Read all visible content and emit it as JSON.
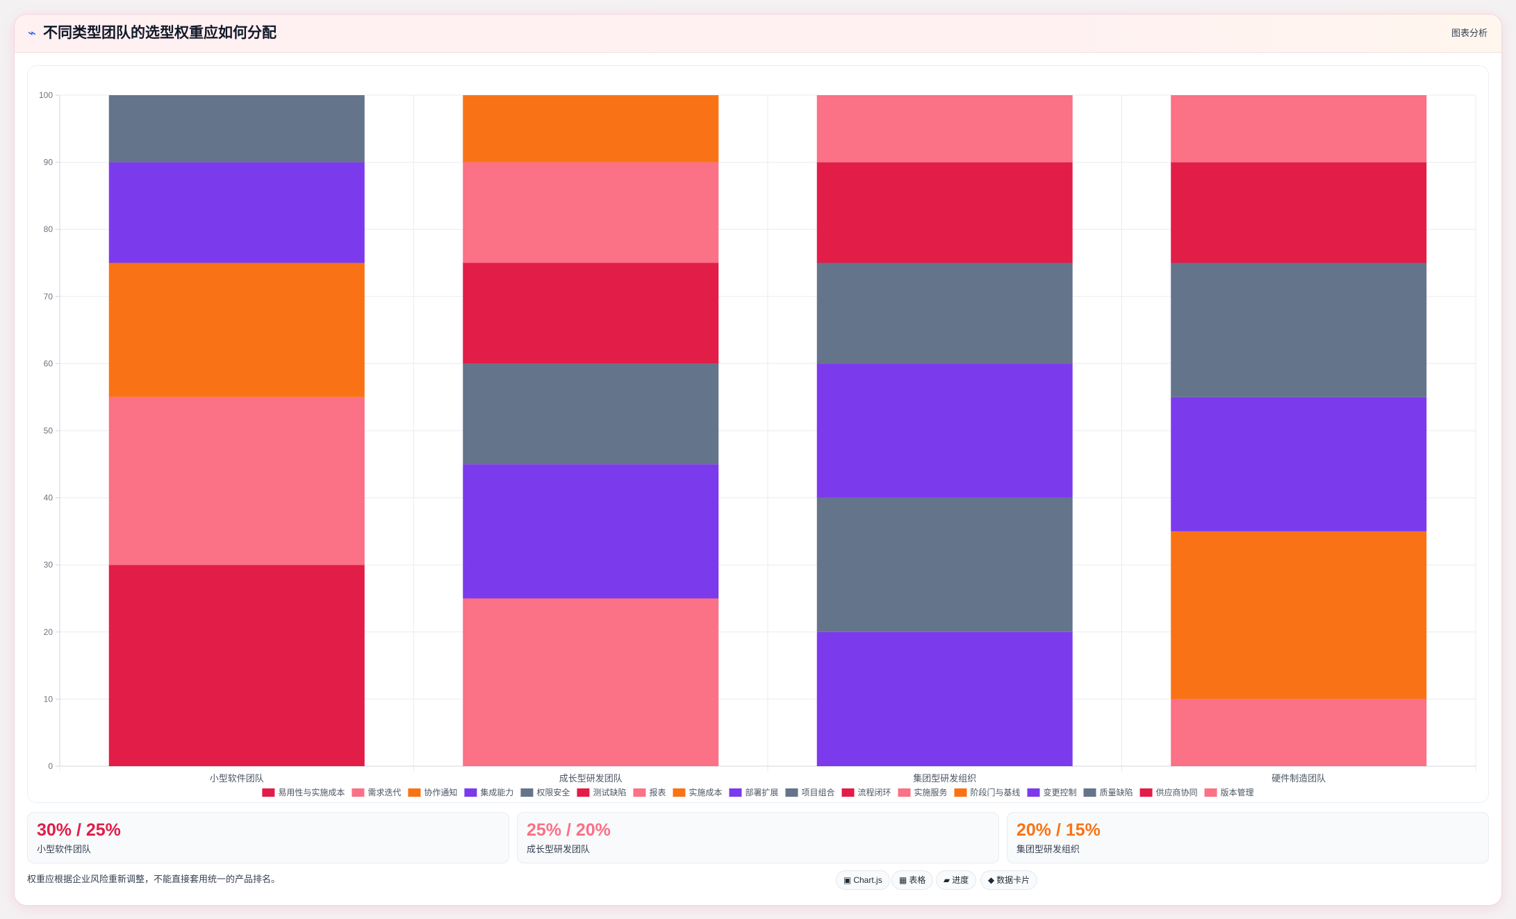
{
  "header": {
    "icon": "activity-bolt-icon",
    "title": "不同类型团队的选型权重应如何分配",
    "tag": "图表分析"
  },
  "chart_data": {
    "type": "bar",
    "stacked": true,
    "categories": [
      "小型软件团队",
      "成长型研发团队",
      "集团型研发组织",
      "硬件制造团队"
    ],
    "ylim": [
      0,
      100
    ],
    "yticks": [
      0,
      10,
      20,
      30,
      40,
      50,
      60,
      70,
      80,
      90,
      100
    ],
    "grid": true,
    "legend_position": "bottom",
    "series": [
      {
        "name": "易用性与实施成本",
        "color": "#e11d48",
        "values": [
          30,
          0,
          0,
          0
        ]
      },
      {
        "name": "需求迭代",
        "color": "#fb7185",
        "values": [
          25,
          0,
          0,
          0
        ]
      },
      {
        "name": "协作通知",
        "color": "#f97316",
        "values": [
          20,
          0,
          0,
          0
        ]
      },
      {
        "name": "集成能力",
        "color": "#7c3aed",
        "values": [
          15,
          0,
          0,
          0
        ]
      },
      {
        "name": "权限安全",
        "color": "#64748b",
        "values": [
          10,
          0,
          0,
          0
        ]
      },
      {
        "name": "测试缺陷",
        "color": "#e11d48",
        "values": [
          0,
          0,
          0,
          0
        ]
      },
      {
        "name": "报表",
        "color": "#fb7185",
        "values": [
          0,
          25,
          0,
          0
        ]
      },
      {
        "name": "实施成本",
        "color": "#f97316",
        "values": [
          0,
          0,
          0,
          0
        ]
      },
      {
        "name": "部署扩展",
        "color": "#7c3aed",
        "values": [
          0,
          20,
          20,
          0
        ]
      },
      {
        "name": "项目组合",
        "color": "#64748b",
        "values": [
          0,
          15,
          20,
          0
        ]
      },
      {
        "name": "流程闭环",
        "color": "#e11d48",
        "values": [
          0,
          15,
          0,
          0
        ]
      },
      {
        "name": "实施服务",
        "color": "#fb7185",
        "values": [
          0,
          15,
          0,
          10
        ]
      },
      {
        "name": "阶段门与基线",
        "color": "#f97316",
        "values": [
          0,
          10,
          0,
          25
        ]
      },
      {
        "name": "变更控制",
        "color": "#7c3aed",
        "values": [
          0,
          0,
          20,
          20
        ]
      },
      {
        "name": "质量缺陷",
        "color": "#64748b",
        "values": [
          0,
          0,
          15,
          20
        ]
      },
      {
        "name": "供应商协同",
        "color": "#e11d48",
        "values": [
          0,
          0,
          15,
          15
        ]
      },
      {
        "name": "版本管理",
        "color": "#fb7185",
        "values": [
          0,
          0,
          10,
          10
        ]
      }
    ]
  },
  "stats": [
    {
      "value": "30% / 25%",
      "label": "小型软件团队",
      "color": "#e11d48"
    },
    {
      "value": "25% / 20%",
      "label": "成长型研发团队",
      "color": "#fb7185"
    },
    {
      "value": "20% / 15%",
      "label": "集团型研发组织",
      "color": "#f97316"
    }
  ],
  "footnote": "权重应根据企业风险重新调整，不能直接套用统一的产品排名。",
  "chips": [
    {
      "icon": "▣",
      "icon_name": "chart-icon",
      "label": "Chart.js"
    },
    {
      "icon": "▦",
      "icon_name": "table-icon",
      "label": "表格"
    },
    {
      "icon": "▰",
      "icon_name": "progress-icon",
      "label": "进度"
    },
    {
      "icon": "◆",
      "icon_name": "data-card-icon",
      "label": "数据卡片"
    }
  ]
}
